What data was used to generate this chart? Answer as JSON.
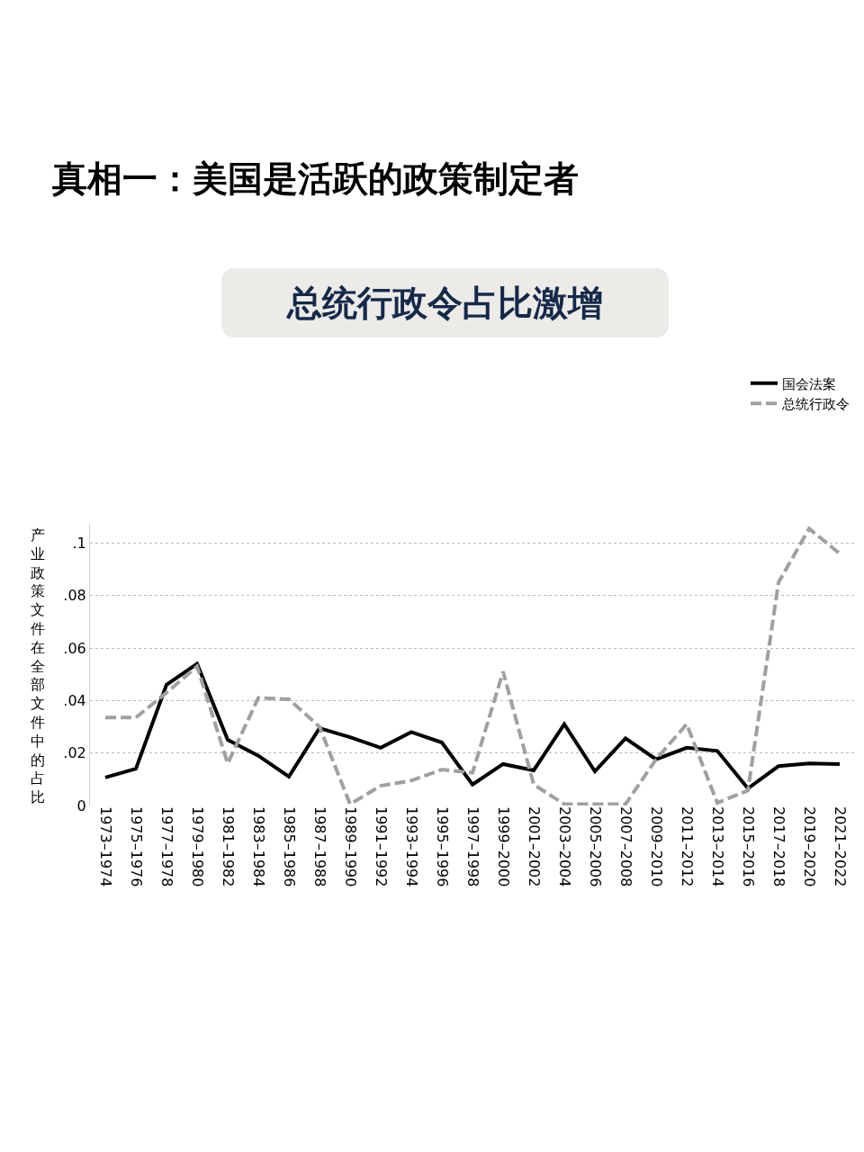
{
  "chart_data": {
    "type": "line",
    "title": "真相一：美国是活跃的政策制定者",
    "subtitle": "总统行政令占比激增",
    "ylabel": "产业政策文件在全部文件中的占比",
    "categories": [
      "1973–1974",
      "1975–1976",
      "1977–1978",
      "1979–1980",
      "1981–1982",
      "1983–1984",
      "1985–1986",
      "1987–1988",
      "1989–1990",
      "1991–1992",
      "1993–1994",
      "1995–1996",
      "1997–1998",
      "1999–2000",
      "2001–2002",
      "2003–2004",
      "2005–2006",
      "2007–2008",
      "2009–2010",
      "2011–2012",
      "2013–2014",
      "2015–2016",
      "2017–2018",
      "2019–2020",
      "2021–2022"
    ],
    "series": [
      {
        "name": "国会法案",
        "color": "#000000",
        "line_style": "solid",
        "values": [
          0.0107,
          0.014,
          0.046,
          0.054,
          0.025,
          0.019,
          0.011,
          0.0295,
          0.026,
          0.022,
          0.028,
          0.024,
          0.008,
          0.0158,
          0.0134,
          0.031,
          0.013,
          0.0256,
          0.0176,
          0.022,
          0.0208,
          0.0065,
          0.015,
          0.016,
          0.0158
        ]
      },
      {
        "name": "总统行政令",
        "color": "#a0a0a0",
        "line_style": "dashed",
        "values": [
          0.0335,
          0.0335,
          0.043,
          0.053,
          0.016,
          0.041,
          0.0405,
          0.03,
          0.0005,
          0.0075,
          0.0095,
          0.0137,
          0.0125,
          0.051,
          0.008,
          0.0005,
          0.0005,
          0.0005,
          0.0176,
          0.031,
          0.001,
          0.0057,
          0.085,
          0.1055,
          0.096
        ]
      }
    ],
    "ylim": [
      0,
      0.107
    ],
    "yticks": [
      {
        "value": 0,
        "label": "0"
      },
      {
        "value": 0.02,
        "label": ".02"
      },
      {
        "value": 0.04,
        "label": ".04"
      },
      {
        "value": 0.06,
        "label": ".06"
      },
      {
        "value": 0.08,
        "label": ".08"
      },
      {
        "value": 0.1,
        "label": ".1"
      }
    ],
    "grid": "y",
    "legend": "top right",
    "marker": "none"
  }
}
